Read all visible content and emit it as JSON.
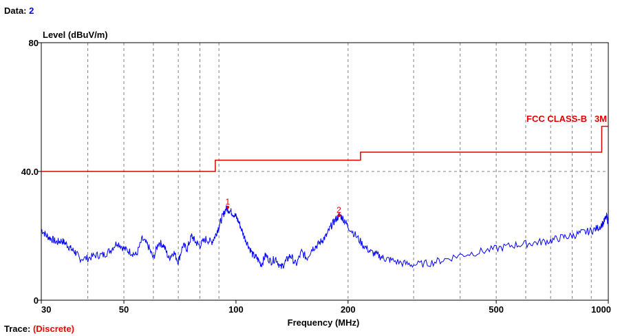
{
  "header": {
    "data_label": "Data:",
    "data_value": "2"
  },
  "trace": {
    "label": "Trace:",
    "value": "(Discrete)"
  },
  "colors": {
    "trace": "#0000ff",
    "limit": "#e00000",
    "marker": "#e00000",
    "grid": "#808080"
  },
  "chart_data": {
    "type": "line",
    "xscale": "log",
    "xlim": [
      30,
      1000
    ],
    "ylim": [
      0,
      80
    ],
    "ylabel": "Level (dBuV/m)",
    "xlabel": "Frequency (MHz)",
    "grid": true,
    "x_ticks": [
      {
        "value": 30,
        "label": "30"
      },
      {
        "value": 50,
        "label": "50"
      },
      {
        "value": 100,
        "label": "100"
      },
      {
        "value": 200,
        "label": "200"
      },
      {
        "value": 500,
        "label": "500"
      },
      {
        "value": 1000,
        "label": "1000"
      }
    ],
    "y_ticks": [
      {
        "value": 0,
        "label": "0"
      },
      {
        "value": 40,
        "label": "40.0"
      },
      {
        "value": 80,
        "label": "80"
      }
    ],
    "limit_line": {
      "name": "FCC CLASS-B   3M",
      "points": [
        [
          30,
          40
        ],
        [
          88,
          40
        ],
        [
          88,
          43.5
        ],
        [
          216,
          43.5
        ],
        [
          216,
          46
        ],
        [
          960,
          46
        ],
        [
          960,
          54
        ],
        [
          1000,
          54
        ]
      ]
    },
    "series": [
      {
        "points": [
          [
            30,
            22
          ],
          [
            31,
            20
          ],
          [
            32,
            19
          ],
          [
            33,
            18
          ],
          [
            34,
            18.5
          ],
          [
            35,
            17.5
          ],
          [
            36,
            16
          ],
          [
            37,
            15
          ],
          [
            38,
            13
          ],
          [
            40,
            13
          ],
          [
            42,
            14
          ],
          [
            44,
            14
          ],
          [
            46,
            15.5
          ],
          [
            48,
            18
          ],
          [
            50,
            16
          ],
          [
            52,
            15
          ],
          [
            54,
            14
          ],
          [
            56,
            19
          ],
          [
            58,
            17
          ],
          [
            60,
            13
          ],
          [
            62,
            18
          ],
          [
            64,
            17
          ],
          [
            66,
            13
          ],
          [
            68,
            15
          ],
          [
            70,
            12
          ],
          [
            72,
            17
          ],
          [
            74,
            16
          ],
          [
            76,
            20
          ],
          [
            78,
            18
          ],
          [
            80,
            17
          ],
          [
            83,
            19
          ],
          [
            86,
            18
          ],
          [
            88,
            20
          ],
          [
            90,
            23
          ],
          [
            92,
            26
          ],
          [
            94,
            28.5
          ],
          [
            96,
            28
          ],
          [
            98,
            27
          ],
          [
            100,
            26
          ],
          [
            102,
            24
          ],
          [
            105,
            20
          ],
          [
            108,
            17
          ],
          [
            111,
            14
          ],
          [
            114,
            13
          ],
          [
            117,
            11
          ],
          [
            120,
            14
          ],
          [
            124,
            12
          ],
          [
            128,
            13
          ],
          [
            132,
            10
          ],
          [
            136,
            12
          ],
          [
            140,
            14
          ],
          [
            145,
            11
          ],
          [
            150,
            15
          ],
          [
            155,
            13
          ],
          [
            160,
            16
          ],
          [
            165,
            17
          ],
          [
            170,
            18.5
          ],
          [
            175,
            20
          ],
          [
            180,
            23
          ],
          [
            185,
            25
          ],
          [
            190,
            26.5
          ],
          [
            195,
            25
          ],
          [
            200,
            23
          ],
          [
            210,
            20
          ],
          [
            220,
            17
          ],
          [
            230,
            15
          ],
          [
            240,
            14
          ],
          [
            250,
            13
          ],
          [
            260,
            12.5
          ],
          [
            280,
            11.5
          ],
          [
            300,
            11
          ],
          [
            330,
            11.5
          ],
          [
            360,
            12.5
          ],
          [
            400,
            14
          ],
          [
            450,
            15
          ],
          [
            500,
            16
          ],
          [
            550,
            17
          ],
          [
            600,
            17.5
          ],
          [
            650,
            18
          ],
          [
            700,
            18.5
          ],
          [
            750,
            19.5
          ],
          [
            800,
            20
          ],
          [
            850,
            21
          ],
          [
            900,
            21.5
          ],
          [
            940,
            22.5
          ],
          [
            970,
            24
          ],
          [
            990,
            26
          ],
          [
            1000,
            24
          ]
        ]
      }
    ],
    "markers": [
      {
        "label": "1",
        "x": 95,
        "y": 28.9
      },
      {
        "label": "2",
        "x": 189,
        "y": 26.3
      }
    ]
  }
}
